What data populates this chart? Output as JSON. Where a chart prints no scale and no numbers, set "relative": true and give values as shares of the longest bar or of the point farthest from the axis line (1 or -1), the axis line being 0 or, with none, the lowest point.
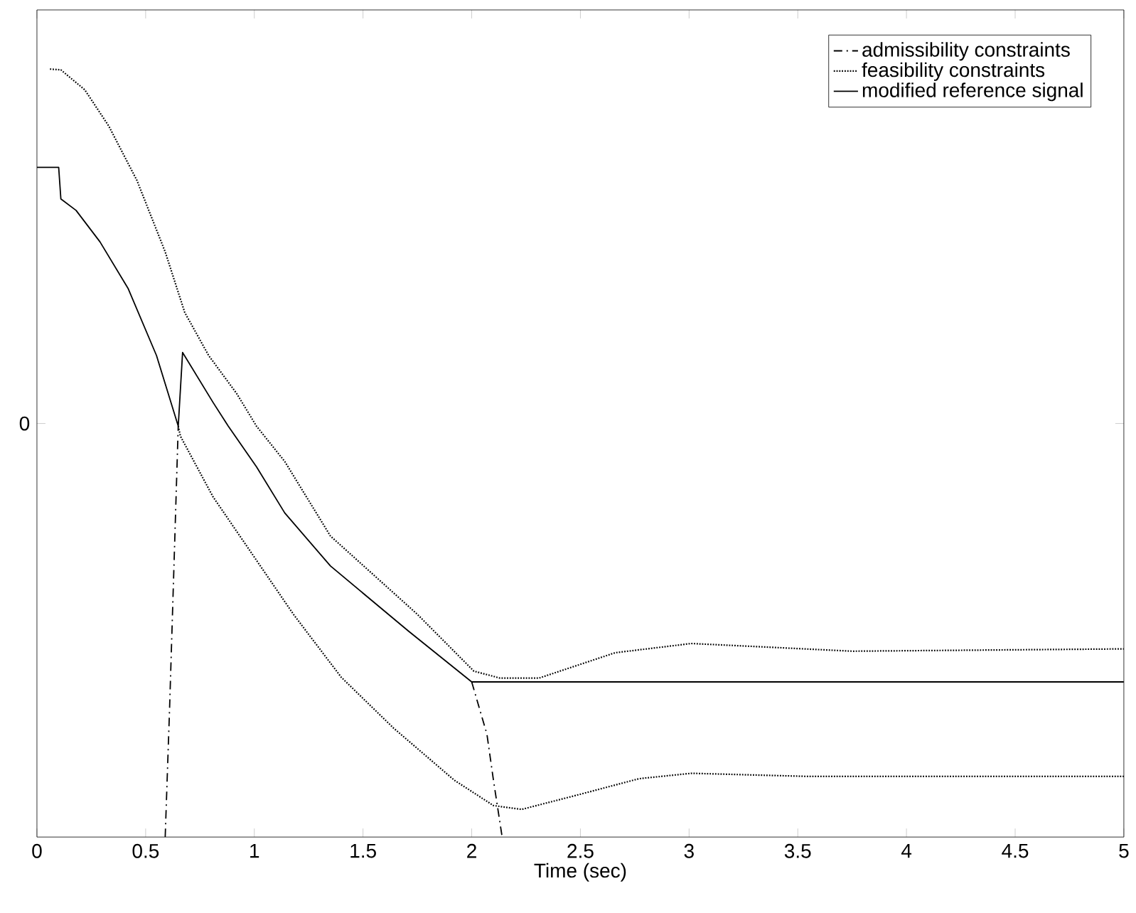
{
  "chart_data": {
    "type": "line",
    "relative": true,
    "xlabel": "Time (sec)",
    "xlim": [
      0,
      5
    ],
    "xticks": [
      0,
      0.5,
      1,
      1.5,
      2,
      2.5,
      3,
      3.5,
      4,
      4.5,
      5
    ],
    "annotations": [
      "0"
    ],
    "legend": "top right",
    "series": [
      {
        "name": "admissibility constraints",
        "color": "#000000",
        "line_style": "dashdot",
        "x": [
          0.59,
          0.61,
          0.63,
          0.65
        ],
        "values": [
          0,
          0.166,
          0.35,
          0.535
        ]
      },
      {
        "color": "#000000",
        "line_style": "dashdot",
        "x": [
          2.0,
          2.07,
          2.1,
          2.14
        ],
        "values": [
          0.202,
          0.134,
          0.074,
          0
        ]
      },
      {
        "name": "feasibility constraints",
        "color": "#000000",
        "line_style": "dotted",
        "x": [
          0.06,
          0.11,
          0.22,
          0.33,
          0.46,
          0.59,
          0.68,
          0.79,
          0.92,
          1.01,
          1.14,
          1.35,
          1.75,
          2.01,
          2.13,
          2.31,
          2.66,
          3.01,
          3.31,
          3.75,
          5
        ],
        "values": [
          1,
          0.999,
          0.973,
          0.926,
          0.855,
          0.762,
          0.683,
          0.627,
          0.577,
          0.535,
          0.489,
          0.392,
          0.29,
          0.216,
          0.207,
          0.207,
          0.24,
          0.252,
          0.248,
          0.242,
          0.245
        ]
      },
      {
        "color": "#000000",
        "line_style": "dotted",
        "x": [
          0.65,
          0.66,
          0.81,
          0.96,
          1.18,
          1.4,
          1.64,
          1.92,
          2.1,
          2.23,
          2.49,
          2.77,
          3.01,
          3.54,
          5
        ],
        "values": [
          0.535,
          0.522,
          0.443,
          0.381,
          0.29,
          0.208,
          0.142,
          0.074,
          0.041,
          0.036,
          0.055,
          0.076,
          0.083,
          0.079,
          0.079
        ]
      },
      {
        "name": "modified reference signal",
        "color": "#000000",
        "line_style": "solid",
        "x": [
          0,
          0.1,
          0.11,
          0.18,
          0.29,
          0.42,
          0.55,
          0.65,
          0.67,
          0.81,
          0.88,
          1.01,
          1.14,
          1.35,
          1.71,
          2.0,
          5
        ],
        "values": [
          0.872,
          0.872,
          0.831,
          0.816,
          0.775,
          0.714,
          0.627,
          0.535,
          0.631,
          0.566,
          0.535,
          0.482,
          0.422,
          0.353,
          0.268,
          0.202,
          0.202
        ]
      }
    ]
  }
}
